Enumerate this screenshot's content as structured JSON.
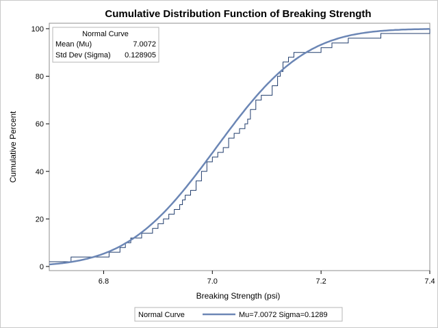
{
  "chart_data": {
    "type": "line",
    "title": "Cumulative Distribution Function of Breaking Strength",
    "xlabel": "Breaking Strength (psi)",
    "ylabel": "Cumulative Percent",
    "xlim": [
      6.7,
      7.4
    ],
    "ylim": [
      0,
      100
    ],
    "x_ticks": [
      "6.8",
      "7.0",
      "7.2",
      "7.4"
    ],
    "y_ticks": [
      "0",
      "20",
      "40",
      "60",
      "80",
      "100"
    ],
    "grid": false,
    "series": [
      {
        "name": "",
        "kind": "empirical-step",
        "color": "#1f3b6b",
        "points": [
          [
            6.7,
            2
          ],
          [
            6.74,
            4
          ],
          [
            6.81,
            6
          ],
          [
            6.83,
            8
          ],
          [
            6.84,
            10
          ],
          [
            6.85,
            12
          ],
          [
            6.87,
            14
          ],
          [
            6.89,
            16
          ],
          [
            6.9,
            18
          ],
          [
            6.91,
            20
          ],
          [
            6.92,
            22
          ],
          [
            6.93,
            24
          ],
          [
            6.94,
            26
          ],
          [
            6.945,
            28
          ],
          [
            6.95,
            30
          ],
          [
            6.96,
            32
          ],
          [
            6.97,
            36
          ],
          [
            6.98,
            40
          ],
          [
            6.99,
            44
          ],
          [
            7.0,
            46
          ],
          [
            7.01,
            48
          ],
          [
            7.02,
            50
          ],
          [
            7.03,
            54
          ],
          [
            7.04,
            56
          ],
          [
            7.05,
            58
          ],
          [
            7.06,
            60
          ],
          [
            7.065,
            62
          ],
          [
            7.07,
            66
          ],
          [
            7.08,
            70
          ],
          [
            7.09,
            72
          ],
          [
            7.11,
            76
          ],
          [
            7.12,
            80
          ],
          [
            7.125,
            82
          ],
          [
            7.13,
            86
          ],
          [
            7.14,
            88
          ],
          [
            7.15,
            90
          ],
          [
            7.2,
            92
          ],
          [
            7.22,
            94
          ],
          [
            7.25,
            96
          ],
          [
            7.31,
            98
          ],
          [
            7.4,
            100
          ]
        ]
      },
      {
        "name": "Mu=7.0072 Sigma=0.1289",
        "kind": "normal-cdf",
        "mu": 7.0072,
        "sigma": 0.128905,
        "color": "#6b86b5"
      }
    ],
    "inset": {
      "title": "Normal Curve",
      "rows": [
        {
          "label": "Mean (Mu)",
          "value": "7.0072"
        },
        {
          "label": "Std Dev (Sigma)",
          "value": "0.128905"
        }
      ]
    },
    "legend": {
      "placement": "bottom",
      "label": "Normal Curve",
      "entry": "Mu=7.0072 Sigma=0.1289"
    }
  }
}
